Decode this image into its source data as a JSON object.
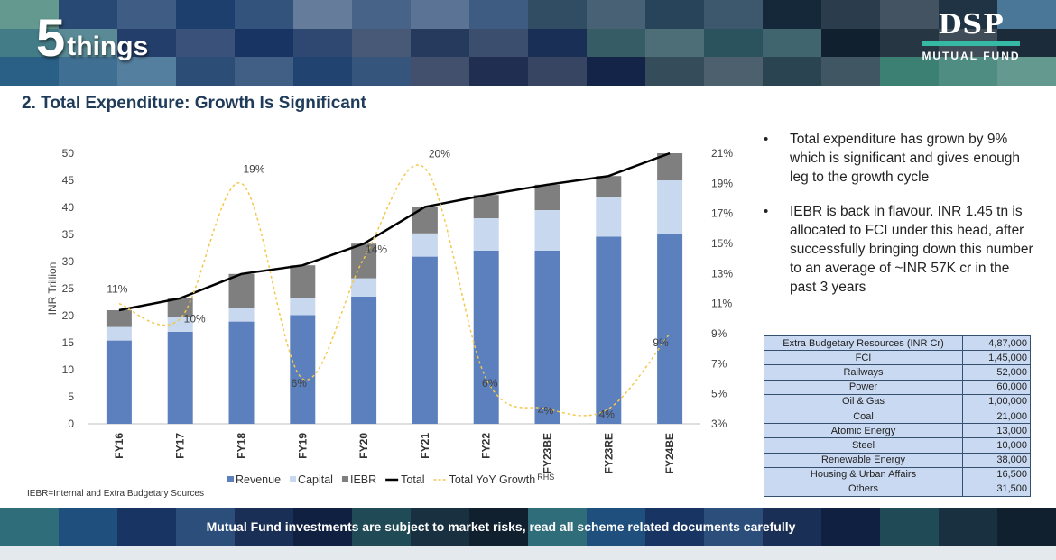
{
  "header": {
    "brand_number": "5",
    "brand_word": "things",
    "logo_main": "DSP",
    "logo_sub": "MUTUAL FUND"
  },
  "page": {
    "title": "2. Total Expenditure: Growth Is Significant"
  },
  "colors": {
    "revenue": "#5b80bd",
    "capital": "#c8d8ef",
    "iebr": "#7f7f7f",
    "total": "#000000",
    "growth": "#f2c84b",
    "header_text": "#1f3b5a",
    "table_bg": "#c9d9f2"
  },
  "chart_data": {
    "type": "bar",
    "stacked": true,
    "categories": [
      "FY16",
      "FY17",
      "FY18",
      "FY19",
      "FY20",
      "FY21",
      "FY22",
      "FY23BE",
      "FY23RE",
      "FY24BE"
    ],
    "series": [
      {
        "name": "Revenue",
        "values": [
          15.4,
          17.0,
          18.9,
          20.1,
          23.5,
          30.9,
          32.0,
          32.0,
          34.6,
          35.0
        ]
      },
      {
        "name": "Capital",
        "values": [
          2.5,
          2.8,
          2.6,
          3.1,
          3.4,
          4.3,
          6.0,
          7.5,
          7.4,
          10.0
        ]
      },
      {
        "name": "IEBR",
        "values": [
          3.1,
          3.4,
          6.2,
          6.1,
          6.4,
          4.9,
          4.3,
          4.7,
          3.8,
          5.0
        ]
      }
    ],
    "line": {
      "name": "Total",
      "values": [
        21.0,
        23.2,
        27.7,
        29.3,
        33.3,
        40.1,
        42.3,
        44.2,
        45.8,
        50.0
      ]
    },
    "rhs_line": {
      "name": "Total YoY Growth",
      "values": [
        11,
        10,
        19,
        6,
        14,
        20,
        6,
        4,
        4,
        9
      ],
      "labels": [
        "11%",
        "10%",
        "19%",
        "6%",
        "14%",
        "20%",
        "6%",
        "4%",
        "4%",
        "9%"
      ]
    },
    "ylabel": "INR Trillion",
    "ylim": [
      0,
      50
    ],
    "yticks": [
      "0",
      "5",
      "10",
      "15",
      "20",
      "25",
      "30",
      "35",
      "40",
      "45",
      "50"
    ],
    "y2lim": [
      3,
      21
    ],
    "y2ticks": [
      "3%",
      "5%",
      "7%",
      "9%",
      "11%",
      "13%",
      "15%",
      "17%",
      "19%",
      "21%"
    ],
    "legend": [
      "Revenue",
      "Capital",
      "IEBR",
      "Total",
      "Total YoY Growth"
    ],
    "legend_rhs_note": "RHS",
    "legend_position": "bottom"
  },
  "footnote": "IEBR=Internal and Extra Budgetary Sources",
  "bullets": [
    "Total expenditure has grown by 9% which is significant and gives enough leg to the growth cycle",
    "IEBR is back in flavour. INR 1.45 tn is allocated to FCI under this head, after successfully bringing down this number to an average of ~INR 57K cr in the past 3 years"
  ],
  "ebr_table": {
    "header": {
      "name": "Extra Budgetary Resources (INR Cr)",
      "value": "4,87,000"
    },
    "rows": [
      {
        "name": "FCI",
        "value": "1,45,000"
      },
      {
        "name": "Railways",
        "value": "52,000"
      },
      {
        "name": "Power",
        "value": "60,000"
      },
      {
        "name": "Oil & Gas",
        "value": "1,00,000"
      },
      {
        "name": "Coal",
        "value": "21,000"
      },
      {
        "name": "Atomic Energy",
        "value": "13,000"
      },
      {
        "name": "Steel",
        "value": "10,000"
      },
      {
        "name": "Renewable Energy",
        "value": "38,000"
      },
      {
        "name": "Housing & Urban Affairs",
        "value": "16,500"
      },
      {
        "name": "Others",
        "value": "31,500"
      }
    ]
  },
  "footer": {
    "disclaimer": "Mutual Fund investments are subject to market risks, read all scheme related documents carefully"
  }
}
